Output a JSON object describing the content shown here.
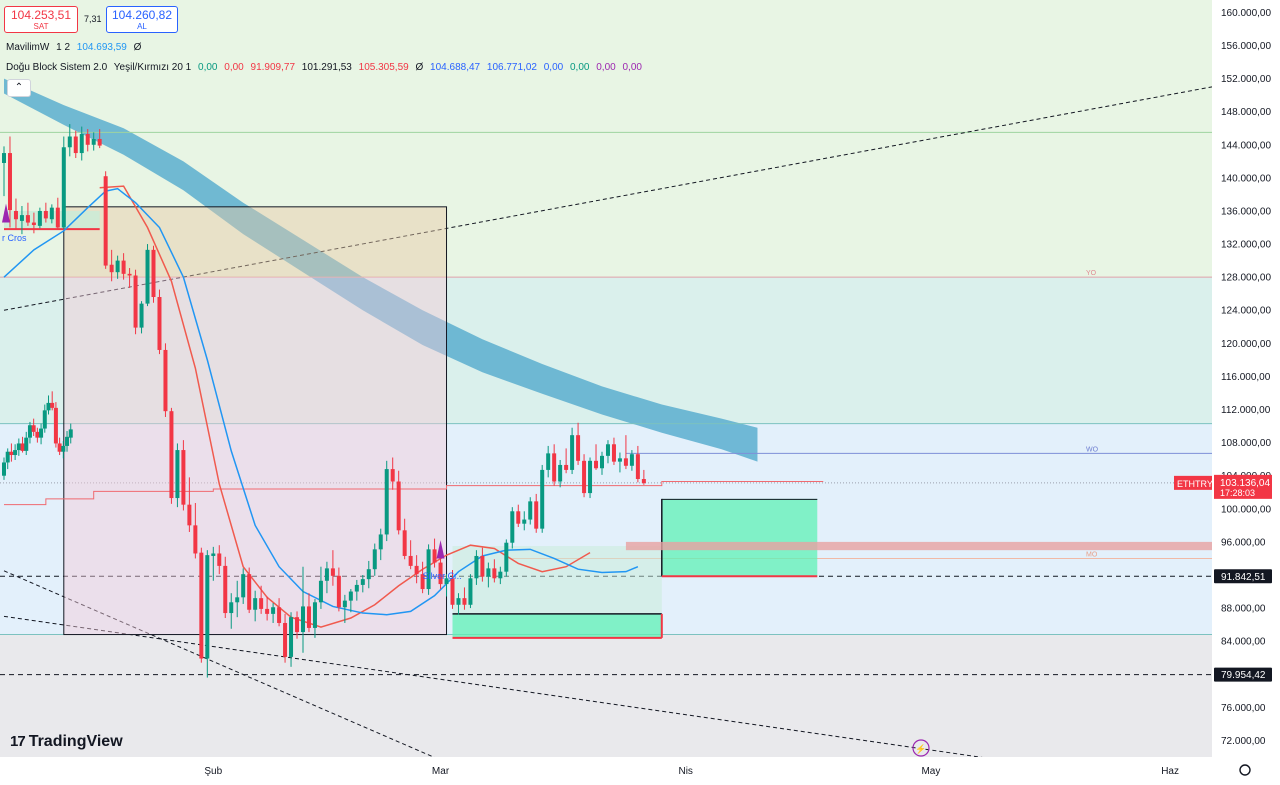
{
  "header": {
    "sell_price": "104.253,51",
    "sell_label": "SAT",
    "spread": "7,31",
    "buy_price": "104.260,82",
    "buy_label": "AL"
  },
  "indicators": [
    {
      "name": "MavilimW",
      "params": "1 2",
      "values": [
        "104.693,59",
        "Ø"
      ]
    },
    {
      "name": "Doğu Block Sistem 2.0",
      "params": "Yeşil/Kırmızı 20 1",
      "values": [
        "0,00",
        "0,00",
        "91.909,77",
        "101.291,53",
        "105.305,59",
        "Ø",
        "104.688,47",
        "106.771,02",
        "0,00",
        "0,00",
        "0,00",
        "0,00"
      ]
    }
  ],
  "collapse_icon": "chevron-up-icon",
  "logo_text": "TradingView",
  "symbol": "ETHTRY",
  "current_price_label": "103.136,04",
  "countdown": "17:28:03",
  "marker_labels": {
    "level_91842": "91.842,51",
    "level_79954": "79.954,42",
    "yo": "YO",
    "wo": "WO",
    "mo": "MO",
    "silver_cross": "Silver Cr..",
    "cross_left": "r Cros"
  },
  "colors": {
    "up": "#089981",
    "down": "#f23645",
    "band": "#5aaecf",
    "mavilim": "#2196f3",
    "red_curve": "#f05a4e",
    "hline_label_bg": "#131722"
  },
  "chart_data": {
    "type": "candlestick",
    "symbol": "ETHTRY",
    "y_axis": {
      "ticks": [
        72000,
        76000,
        80000,
        84000,
        88000,
        92000,
        96000,
        100000,
        104000,
        108000,
        112000,
        116000,
        120000,
        124000,
        128000,
        132000,
        136000,
        140000,
        144000,
        148000,
        152000,
        156000,
        160000
      ],
      "tick_labels": [
        "72.000,00",
        "76.000,00",
        "80.000,00",
        "84.000,00",
        "88.000,00",
        "92.000,00",
        "96.000,00",
        "100.000,00",
        "104.000,00",
        "108.000,00",
        "112.000,00",
        "116.000,00",
        "120.000,00",
        "124.000,00",
        "128.000,00",
        "132.000,00",
        "136.000,00",
        "140.000,00",
        "144.000,00",
        "148.000,00",
        "152.000,00",
        "156.000,00",
        "160.000,00"
      ],
      "range": [
        70000,
        161500
      ]
    },
    "x_axis": {
      "range": [
        0,
        200
      ],
      "ticks": [
        {
          "label": "Şub",
          "index": 35
        },
        {
          "label": "Mar",
          "index": 73
        },
        {
          "label": "Nis",
          "index": 114
        },
        {
          "label": "May",
          "index": 155
        },
        {
          "label": "Haz",
          "index": 195
        }
      ]
    },
    "horizontal_levels": [
      {
        "value": 91842.51,
        "style": "dashed",
        "label": "91.842,51"
      },
      {
        "value": 79954.42,
        "style": "dashed",
        "label": "79.954,42"
      },
      {
        "value": 128000,
        "style": "solid",
        "label": "YO"
      },
      {
        "value": 106700,
        "style": "solid",
        "label": "WO"
      },
      {
        "value": 94000,
        "style": "solid",
        "label": "MO"
      },
      {
        "value": 145500,
        "style": "solid"
      },
      {
        "value": 110300,
        "style": "solid"
      },
      {
        "value": 84800,
        "style": "solid"
      }
    ],
    "candles": [
      [
        0,
        104000,
        106200,
        103500,
        105600
      ],
      [
        1,
        105600,
        107300,
        104800,
        106900
      ],
      [
        2,
        106900,
        107900,
        105700,
        106500
      ],
      [
        3,
        106500,
        107800,
        105900,
        107100
      ],
      [
        4,
        107100,
        108500,
        106400,
        107900
      ],
      [
        5,
        107900,
        108700,
        106800,
        107000
      ],
      [
        6,
        107000,
        109300,
        106500,
        108600
      ],
      [
        7,
        108600,
        110500,
        107900,
        110100
      ],
      [
        8,
        110100,
        110900,
        108800,
        109300
      ],
      [
        9,
        109300,
        109800,
        108000,
        108600
      ],
      [
        10,
        108600,
        110300,
        107800,
        109700
      ],
      [
        11,
        109700,
        112600,
        109200,
        111900
      ],
      [
        12,
        111900,
        113700,
        111400,
        112800
      ],
      [
        13,
        112800,
        114200,
        111900,
        112200
      ],
      [
        14,
        112200,
        112900,
        107400,
        107900
      ],
      [
        15,
        107900,
        108600,
        106500,
        106900
      ],
      [
        16,
        106900,
        108200,
        106100,
        107600
      ],
      [
        17,
        107600,
        109400,
        106900,
        108700
      ],
      [
        18,
        108600,
        110300,
        107900,
        109600
      ],
      [
        0,
        141800,
        143800,
        137800,
        143000
      ],
      [
        1,
        143000,
        145000,
        134000,
        136100
      ],
      [
        2,
        136000,
        137500,
        133800,
        135000
      ],
      [
        3,
        134800,
        136600,
        133200,
        135500
      ],
      [
        4,
        135500,
        137000,
        134200,
        134600
      ],
      [
        5,
        134600,
        135800,
        133300,
        134300
      ],
      [
        6,
        134200,
        136400,
        133900,
        136000
      ],
      [
        7,
        136000,
        137000,
        134600,
        135100
      ],
      [
        8,
        135000,
        136800,
        134500,
        136400
      ],
      [
        9,
        136400,
        137600,
        133800,
        134000
      ],
      [
        10,
        134000,
        145000,
        133800,
        143700
      ],
      [
        11,
        143700,
        146500,
        142600,
        145000
      ],
      [
        12,
        145000,
        145700,
        142400,
        143000
      ],
      [
        13,
        143000,
        146200,
        142100,
        145300
      ],
      [
        14,
        145300,
        145900,
        143200,
        144000
      ],
      [
        15,
        144000,
        145500,
        143300,
        144700
      ],
      [
        16,
        144700,
        145900,
        143600,
        143900
      ],
      [
        17,
        140200,
        140800,
        129000,
        129400
      ],
      [
        18,
        129500,
        131300,
        127500,
        128600
      ],
      [
        19,
        128600,
        130600,
        127800,
        130000
      ],
      [
        20,
        130000,
        130900,
        127700,
        128400
      ],
      [
        21,
        128400,
        129100,
        126700,
        128200
      ],
      [
        22,
        128200,
        128900,
        121100,
        121900
      ],
      [
        23,
        121900,
        125100,
        121200,
        124800
      ],
      [
        24,
        124800,
        132000,
        124500,
        131300
      ],
      [
        25,
        131300,
        131800,
        124900,
        125600
      ],
      [
        26,
        125600,
        126500,
        118700,
        119200
      ],
      [
        27,
        119200,
        120000,
        111100,
        111800
      ],
      [
        28,
        111800,
        112200,
        100600,
        101300
      ],
      [
        29,
        101300,
        107900,
        100200,
        107100
      ],
      [
        30,
        107100,
        108300,
        99800,
        100500
      ],
      [
        31,
        100500,
        103800,
        97200,
        98000
      ],
      [
        32,
        98000,
        100700,
        94000,
        94600
      ],
      [
        33,
        94700,
        95300,
        81400,
        81900
      ],
      [
        34,
        81900,
        95000,
        79600,
        94400
      ],
      [
        35,
        94300,
        95400,
        91300,
        94600
      ],
      [
        36,
        94600,
        95600,
        92100,
        93100
      ],
      [
        37,
        93100,
        94200,
        86800,
        87400
      ],
      [
        38,
        87400,
        89800,
        85500,
        88700
      ],
      [
        39,
        88700,
        91300,
        86900,
        89300
      ],
      [
        40,
        89300,
        92800,
        88500,
        92100
      ],
      [
        41,
        92100,
        92900,
        87400,
        87800
      ],
      [
        42,
        87800,
        90100,
        86400,
        89200
      ],
      [
        43,
        89200,
        90700,
        87300,
        87900
      ],
      [
        44,
        87900,
        89400,
        86500,
        87300
      ],
      [
        45,
        87300,
        88600,
        86200,
        88100
      ],
      [
        46,
        88100,
        89200,
        85800,
        86200
      ],
      [
        47,
        86200,
        87300,
        81400,
        82100
      ],
      [
        48,
        82100,
        87500,
        80900,
        86900
      ],
      [
        49,
        86900,
        87600,
        84300,
        85100
      ],
      [
        50,
        85100,
        93000,
        82600,
        88200
      ],
      [
        51,
        88200,
        89800,
        85100,
        85600
      ],
      [
        52,
        85600,
        89100,
        84400,
        88700
      ],
      [
        53,
        88700,
        93000,
        87900,
        91300
      ],
      [
        54,
        91300,
        93600,
        89800,
        92800
      ],
      [
        55,
        92800,
        95000,
        90700,
        91900
      ],
      [
        56,
        91900,
        92900,
        87600,
        88100
      ],
      [
        57,
        88100,
        89600,
        86200,
        88900
      ],
      [
        58,
        88900,
        90300,
        87500,
        90000
      ],
      [
        59,
        90000,
        91400,
        88900,
        90800
      ],
      [
        60,
        90800,
        92000,
        89900,
        91500
      ],
      [
        61,
        91500,
        93700,
        90400,
        92700
      ],
      [
        62,
        92700,
        95800,
        91900,
        95100
      ],
      [
        63,
        95100,
        97600,
        93800,
        96900
      ],
      [
        64,
        96900,
        105800,
        96100,
        104800
      ],
      [
        65,
        104800,
        106200,
        102300,
        103300
      ],
      [
        66,
        103300,
        104600,
        96900,
        97400
      ],
      [
        67,
        97400,
        98800,
        93900,
        94300
      ],
      [
        68,
        94300,
        96200,
        92700,
        93100
      ],
      [
        69,
        93100,
        94400,
        91000,
        92100
      ],
      [
        70,
        92100,
        93600,
        89800,
        90300
      ],
      [
        71,
        90300,
        95700,
        89600,
        95100
      ],
      [
        72,
        95100,
        96400,
        92900,
        93500
      ],
      [
        73,
        93500,
        94300,
        90300,
        90900
      ],
      [
        74,
        90900,
        92100,
        89400,
        91600
      ],
      [
        75,
        91600,
        92600,
        87900,
        88400
      ],
      [
        76,
        88400,
        89800,
        87200,
        89200
      ],
      [
        77,
        89200,
        90500,
        87800,
        88400
      ],
      [
        78,
        88400,
        92100,
        88000,
        91600
      ],
      [
        79,
        91600,
        95000,
        90800,
        94300
      ],
      [
        80,
        94300,
        95300,
        91200,
        91800
      ],
      [
        81,
        91800,
        93500,
        90500,
        92800
      ],
      [
        82,
        92800,
        93900,
        91100,
        91600
      ],
      [
        83,
        91600,
        93000,
        90900,
        92400
      ],
      [
        84,
        92400,
        96300,
        91800,
        95900
      ],
      [
        85,
        95900,
        100200,
        95200,
        99700
      ],
      [
        86,
        99700,
        100500,
        97800,
        98200
      ],
      [
        87,
        98200,
        99700,
        97400,
        98700
      ],
      [
        88,
        98700,
        101400,
        98100,
        100900
      ],
      [
        89,
        100900,
        101800,
        97100,
        97600
      ],
      [
        90,
        97600,
        105300,
        97100,
        104700
      ],
      [
        91,
        104700,
        107600,
        103800,
        106700
      ],
      [
        92,
        106700,
        107800,
        102800,
        103300
      ],
      [
        93,
        103300,
        105900,
        102600,
        105300
      ],
      [
        94,
        105300,
        107300,
        104300,
        104700
      ],
      [
        95,
        104700,
        109800,
        104200,
        108900
      ],
      [
        96,
        108900,
        110400,
        105300,
        105800
      ],
      [
        97,
        105800,
        106600,
        101400,
        101900
      ],
      [
        98,
        101900,
        106200,
        101300,
        105800
      ],
      [
        99,
        105800,
        107800,
        104700,
        104900
      ],
      [
        100,
        104900,
        106900,
        104100,
        106400
      ],
      [
        101,
        106400,
        108300,
        105500,
        107800
      ],
      [
        102,
        107800,
        108600,
        105300,
        105700
      ],
      [
        103,
        105700,
        106800,
        104400,
        106100
      ],
      [
        104,
        106100,
        108900,
        104800,
        105200
      ],
      [
        105,
        105200,
        107100,
        104600,
        106600
      ],
      [
        106,
        106600,
        107600,
        103200,
        103600
      ],
      [
        107,
        103600,
        104700,
        102900,
        103100
      ]
    ],
    "mavilim_line": [
      [
        0,
        128000
      ],
      [
        5,
        131300
      ],
      [
        10,
        133600
      ],
      [
        14,
        136400
      ],
      [
        17,
        138400
      ],
      [
        19,
        138700
      ],
      [
        22,
        137000
      ],
      [
        26,
        134000
      ],
      [
        30,
        128000
      ],
      [
        34,
        118000
      ],
      [
        38,
        107000
      ],
      [
        42,
        98000
      ],
      [
        46,
        93000
      ],
      [
        50,
        90000
      ],
      [
        55,
        88200
      ],
      [
        60,
        87400
      ],
      [
        64,
        87200
      ],
      [
        68,
        87600
      ],
      [
        72,
        89500
      ],
      [
        76,
        92400
      ],
      [
        80,
        94300
      ],
      [
        84,
        95000
      ],
      [
        88,
        95100
      ],
      [
        92,
        94000
      ],
      [
        96,
        92700
      ],
      [
        100,
        92300
      ],
      [
        104,
        92400
      ],
      [
        106,
        93000
      ]
    ],
    "red_curve": [
      [
        16,
        138800
      ],
      [
        20,
        139000
      ],
      [
        24,
        134000
      ],
      [
        28,
        127500
      ],
      [
        32,
        117000
      ],
      [
        36,
        103000
      ],
      [
        40,
        93000
      ],
      [
        44,
        89300
      ],
      [
        48,
        86900
      ],
      [
        53,
        85700
      ],
      [
        58,
        86800
      ],
      [
        62,
        88400
      ],
      [
        66,
        90700
      ],
      [
        70,
        92700
      ],
      [
        74,
        94400
      ],
      [
        78,
        95600
      ],
      [
        82,
        95200
      ],
      [
        86,
        93400
      ],
      [
        90,
        92400
      ],
      [
        94,
        93000
      ],
      [
        98,
        94700
      ]
    ],
    "band_upper": [
      [
        0,
        152000
      ],
      [
        10,
        148800
      ],
      [
        20,
        146000
      ],
      [
        30,
        142000
      ],
      [
        40,
        137000
      ],
      [
        50,
        132500
      ],
      [
        60,
        128000
      ],
      [
        70,
        124000
      ],
      [
        80,
        120500
      ],
      [
        90,
        117500
      ],
      [
        100,
        114800
      ],
      [
        110,
        112600
      ],
      [
        120,
        110900
      ],
      [
        126,
        109800
      ]
    ],
    "band_lower": [
      [
        0,
        150200
      ],
      [
        10,
        146400
      ],
      [
        20,
        142800
      ],
      [
        30,
        138500
      ],
      [
        40,
        133200
      ],
      [
        50,
        128600
      ],
      [
        60,
        124000
      ],
      [
        70,
        119800
      ],
      [
        80,
        116500
      ],
      [
        90,
        113900
      ],
      [
        100,
        111400
      ],
      [
        110,
        109200
      ],
      [
        120,
        107200
      ],
      [
        126,
        105700
      ]
    ]
  }
}
